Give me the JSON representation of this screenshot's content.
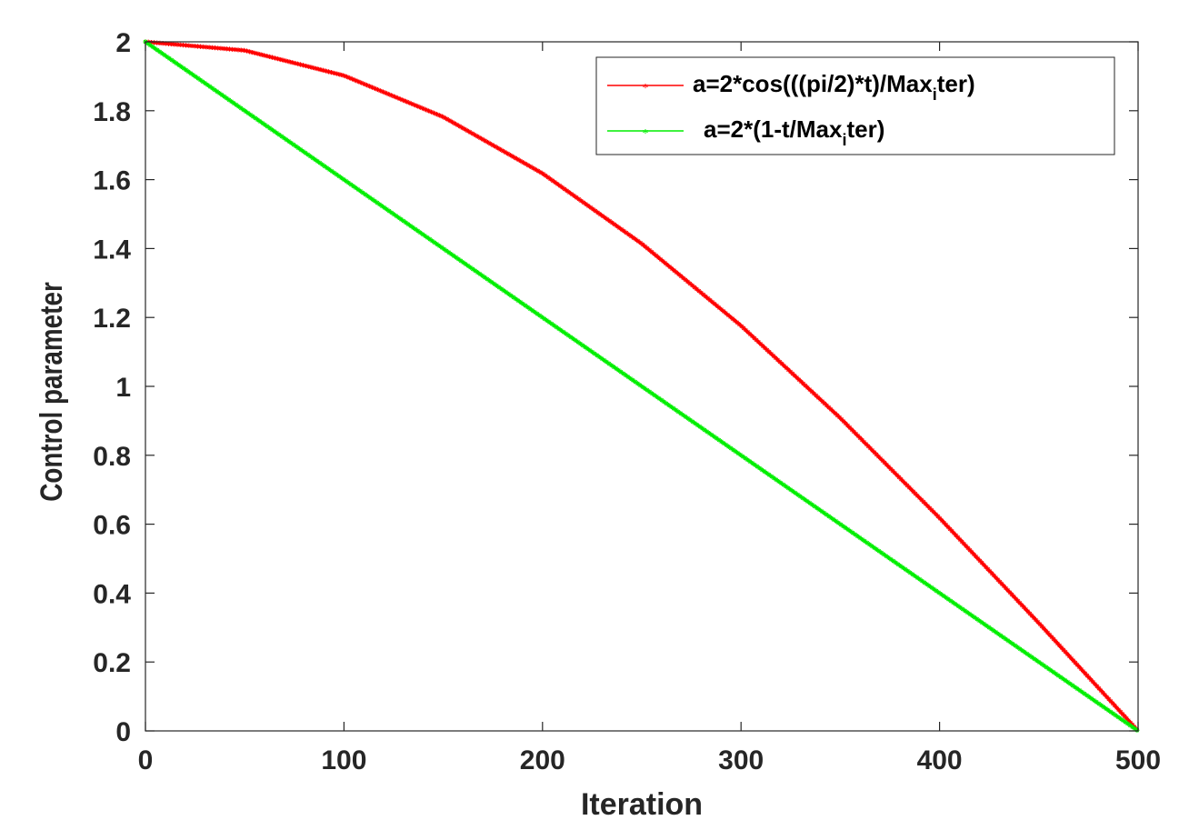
{
  "chart_data": {
    "type": "line",
    "xlabel": "Iteration",
    "ylabel": "Control parameter",
    "xlim": [
      0,
      500
    ],
    "ylim": [
      0,
      2
    ],
    "x_ticks": [
      "0",
      "100",
      "200",
      "300",
      "400",
      "500"
    ],
    "y_ticks": [
      "0",
      "0.2",
      "0.4",
      "0.6",
      "0.8",
      "1",
      "1.2",
      "1.4",
      "1.6",
      "1.8",
      "2"
    ],
    "grid": false,
    "legend_position": "top-right",
    "series": [
      {
        "name_prefix": "a=2*cos(((pi/2)*t)/Max",
        "name_sub": "i",
        "name_suffix": "ter)",
        "color": "#ff0000",
        "marker": "star",
        "x": [
          0,
          50,
          100,
          150,
          200,
          250,
          300,
          350,
          400,
          450,
          500
        ],
        "values": [
          2.0,
          1.975,
          1.902,
          1.782,
          1.618,
          1.414,
          1.176,
          0.908,
          0.618,
          0.313,
          0.0
        ]
      },
      {
        "name_prefix": "a=2*(1-t/Max",
        "name_sub": "i",
        "name_suffix": "ter)",
        "color": "#00ee00",
        "marker": "star",
        "x": [
          0,
          50,
          100,
          150,
          200,
          250,
          300,
          350,
          400,
          450,
          500
        ],
        "values": [
          2.0,
          1.8,
          1.6,
          1.4,
          1.2,
          1.0,
          0.8,
          0.6,
          0.4,
          0.2,
          0.0
        ]
      }
    ]
  }
}
